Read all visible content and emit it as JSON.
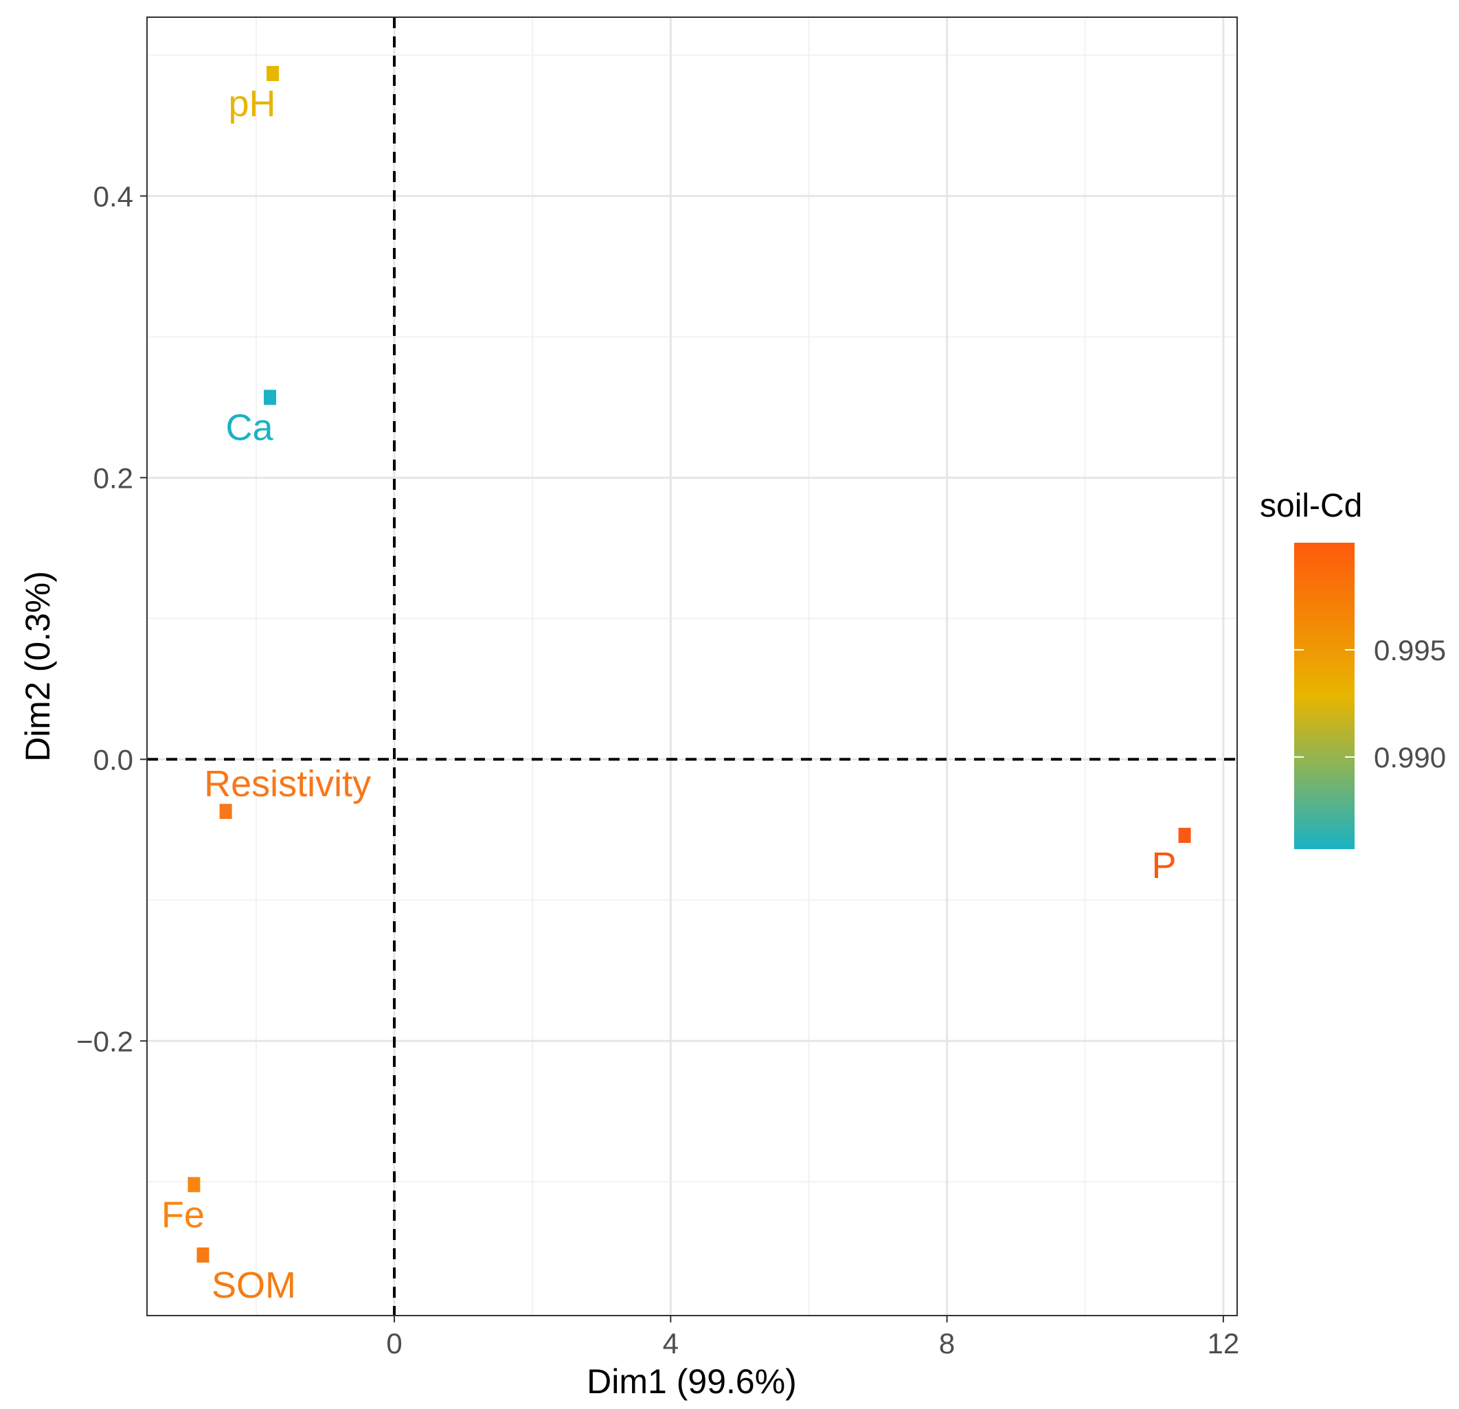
{
  "chart_data": {
    "type": "scatter",
    "xlabel": "Dim1 (99.6%)",
    "ylabel": "Dim2 (0.3%)",
    "xlim": [
      -3.58,
      12.2
    ],
    "ylim": [
      -0.395,
      0.527
    ],
    "x_ticks": [
      0,
      4,
      8,
      12
    ],
    "x_tick_labels": [
      "0",
      "4",
      "8",
      "12"
    ],
    "y_ticks": [
      -0.2,
      0.0,
      0.2,
      0.4
    ],
    "y_tick_labels": [
      "−0.2",
      "0.0",
      "0.2",
      "0.4"
    ],
    "reference_lines": [
      "x = 0 (dashed)",
      "y = 0 (dashed)"
    ],
    "grid": true,
    "points": [
      {
        "label": "pH",
        "x": -1.76,
        "y": 0.487,
        "cd": 0.9951,
        "color": "#e8b500"
      },
      {
        "label": "Ca",
        "x": -1.8,
        "y": 0.257,
        "cd": 0.9865,
        "color": "#1ab2c4"
      },
      {
        "label": "Resistivity",
        "x": -2.44,
        "y": -0.037,
        "cd": 0.9985,
        "color": "#f8771a"
      },
      {
        "label": "P",
        "x": 11.44,
        "y": -0.054,
        "cd": 0.9998,
        "color": "#f85a14"
      },
      {
        "label": "Fe",
        "x": -2.9,
        "y": -0.302,
        "cd": 0.9982,
        "color": "#f7850f"
      },
      {
        "label": "SOM",
        "x": -2.77,
        "y": -0.352,
        "cd": 0.9984,
        "color": "#f77b12"
      }
    ],
    "legend": {
      "title": "soil-Cd",
      "position": "right",
      "range": [
        0.9857,
        1.0
      ],
      "tick_values": [
        0.995,
        0.99
      ],
      "tick_labels": [
        "0.995",
        "0.990"
      ],
      "colors": [
        "#1ab2c4",
        "#e8b500",
        "#ff5a0c"
      ]
    }
  }
}
